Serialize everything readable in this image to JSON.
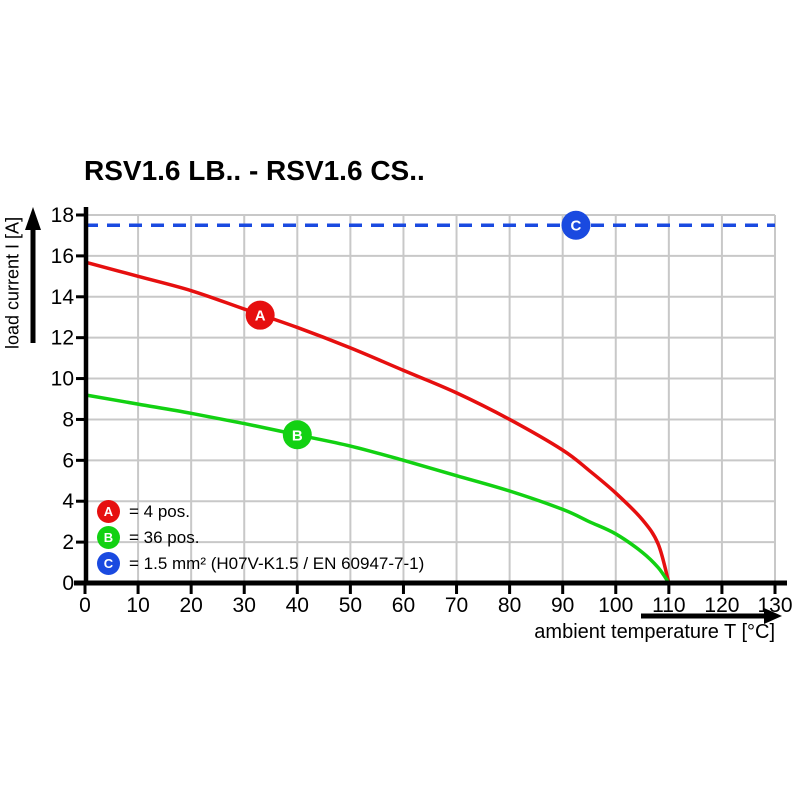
{
  "title": "RSV1.6 LB.. - RSV1.6 CS..",
  "chart_data": {
    "type": "line",
    "title": "RSV1.6 LB.. - RSV1.6 CS..",
    "xlabel": "ambient temperature T [°C]",
    "ylabel": "load current I [A]",
    "xlim": [
      0,
      130
    ],
    "ylim": [
      0,
      18
    ],
    "x_ticks": [
      0,
      10,
      20,
      30,
      40,
      50,
      60,
      70,
      80,
      90,
      100,
      110,
      120,
      130
    ],
    "y_ticks": [
      0,
      2,
      4,
      6,
      8,
      10,
      12,
      14,
      16,
      18
    ],
    "grid": true,
    "grid_color": "#c8c8c8",
    "legend_position": "bottom-left-inside",
    "series": [
      {
        "name": "A",
        "label": "= 4 pos.",
        "color": "#e60f0f",
        "style": "solid",
        "marker_at": [
          33,
          13.1
        ],
        "points": [
          [
            0,
            15.7
          ],
          [
            10,
            15.0
          ],
          [
            20,
            14.3
          ],
          [
            30,
            13.4
          ],
          [
            40,
            12.5
          ],
          [
            50,
            11.5
          ],
          [
            60,
            10.4
          ],
          [
            70,
            9.3
          ],
          [
            80,
            8.0
          ],
          [
            90,
            6.5
          ],
          [
            95,
            5.5
          ],
          [
            100,
            4.4
          ],
          [
            105,
            3.1
          ],
          [
            108,
            1.9
          ],
          [
            110,
            0
          ]
        ]
      },
      {
        "name": "B",
        "label": "= 36 pos.",
        "color": "#12d112",
        "style": "solid",
        "marker_at": [
          40,
          7.25
        ],
        "points": [
          [
            0,
            9.2
          ],
          [
            10,
            8.75
          ],
          [
            20,
            8.3
          ],
          [
            30,
            7.8
          ],
          [
            40,
            7.25
          ],
          [
            50,
            6.7
          ],
          [
            60,
            6.0
          ],
          [
            70,
            5.25
          ],
          [
            80,
            4.5
          ],
          [
            90,
            3.6
          ],
          [
            95,
            3.0
          ],
          [
            100,
            2.4
          ],
          [
            105,
            1.5
          ],
          [
            108,
            0.75
          ],
          [
            110,
            0
          ]
        ]
      },
      {
        "name": "C",
        "label": "= 1.5 mm² (H07V-K1.5 / EN 60947-7-1)",
        "color": "#1a4ae0",
        "style": "dashed",
        "marker_at": [
          92.5,
          17.5
        ],
        "points": [
          [
            0,
            17.5
          ],
          [
            130,
            17.5
          ]
        ]
      }
    ]
  }
}
